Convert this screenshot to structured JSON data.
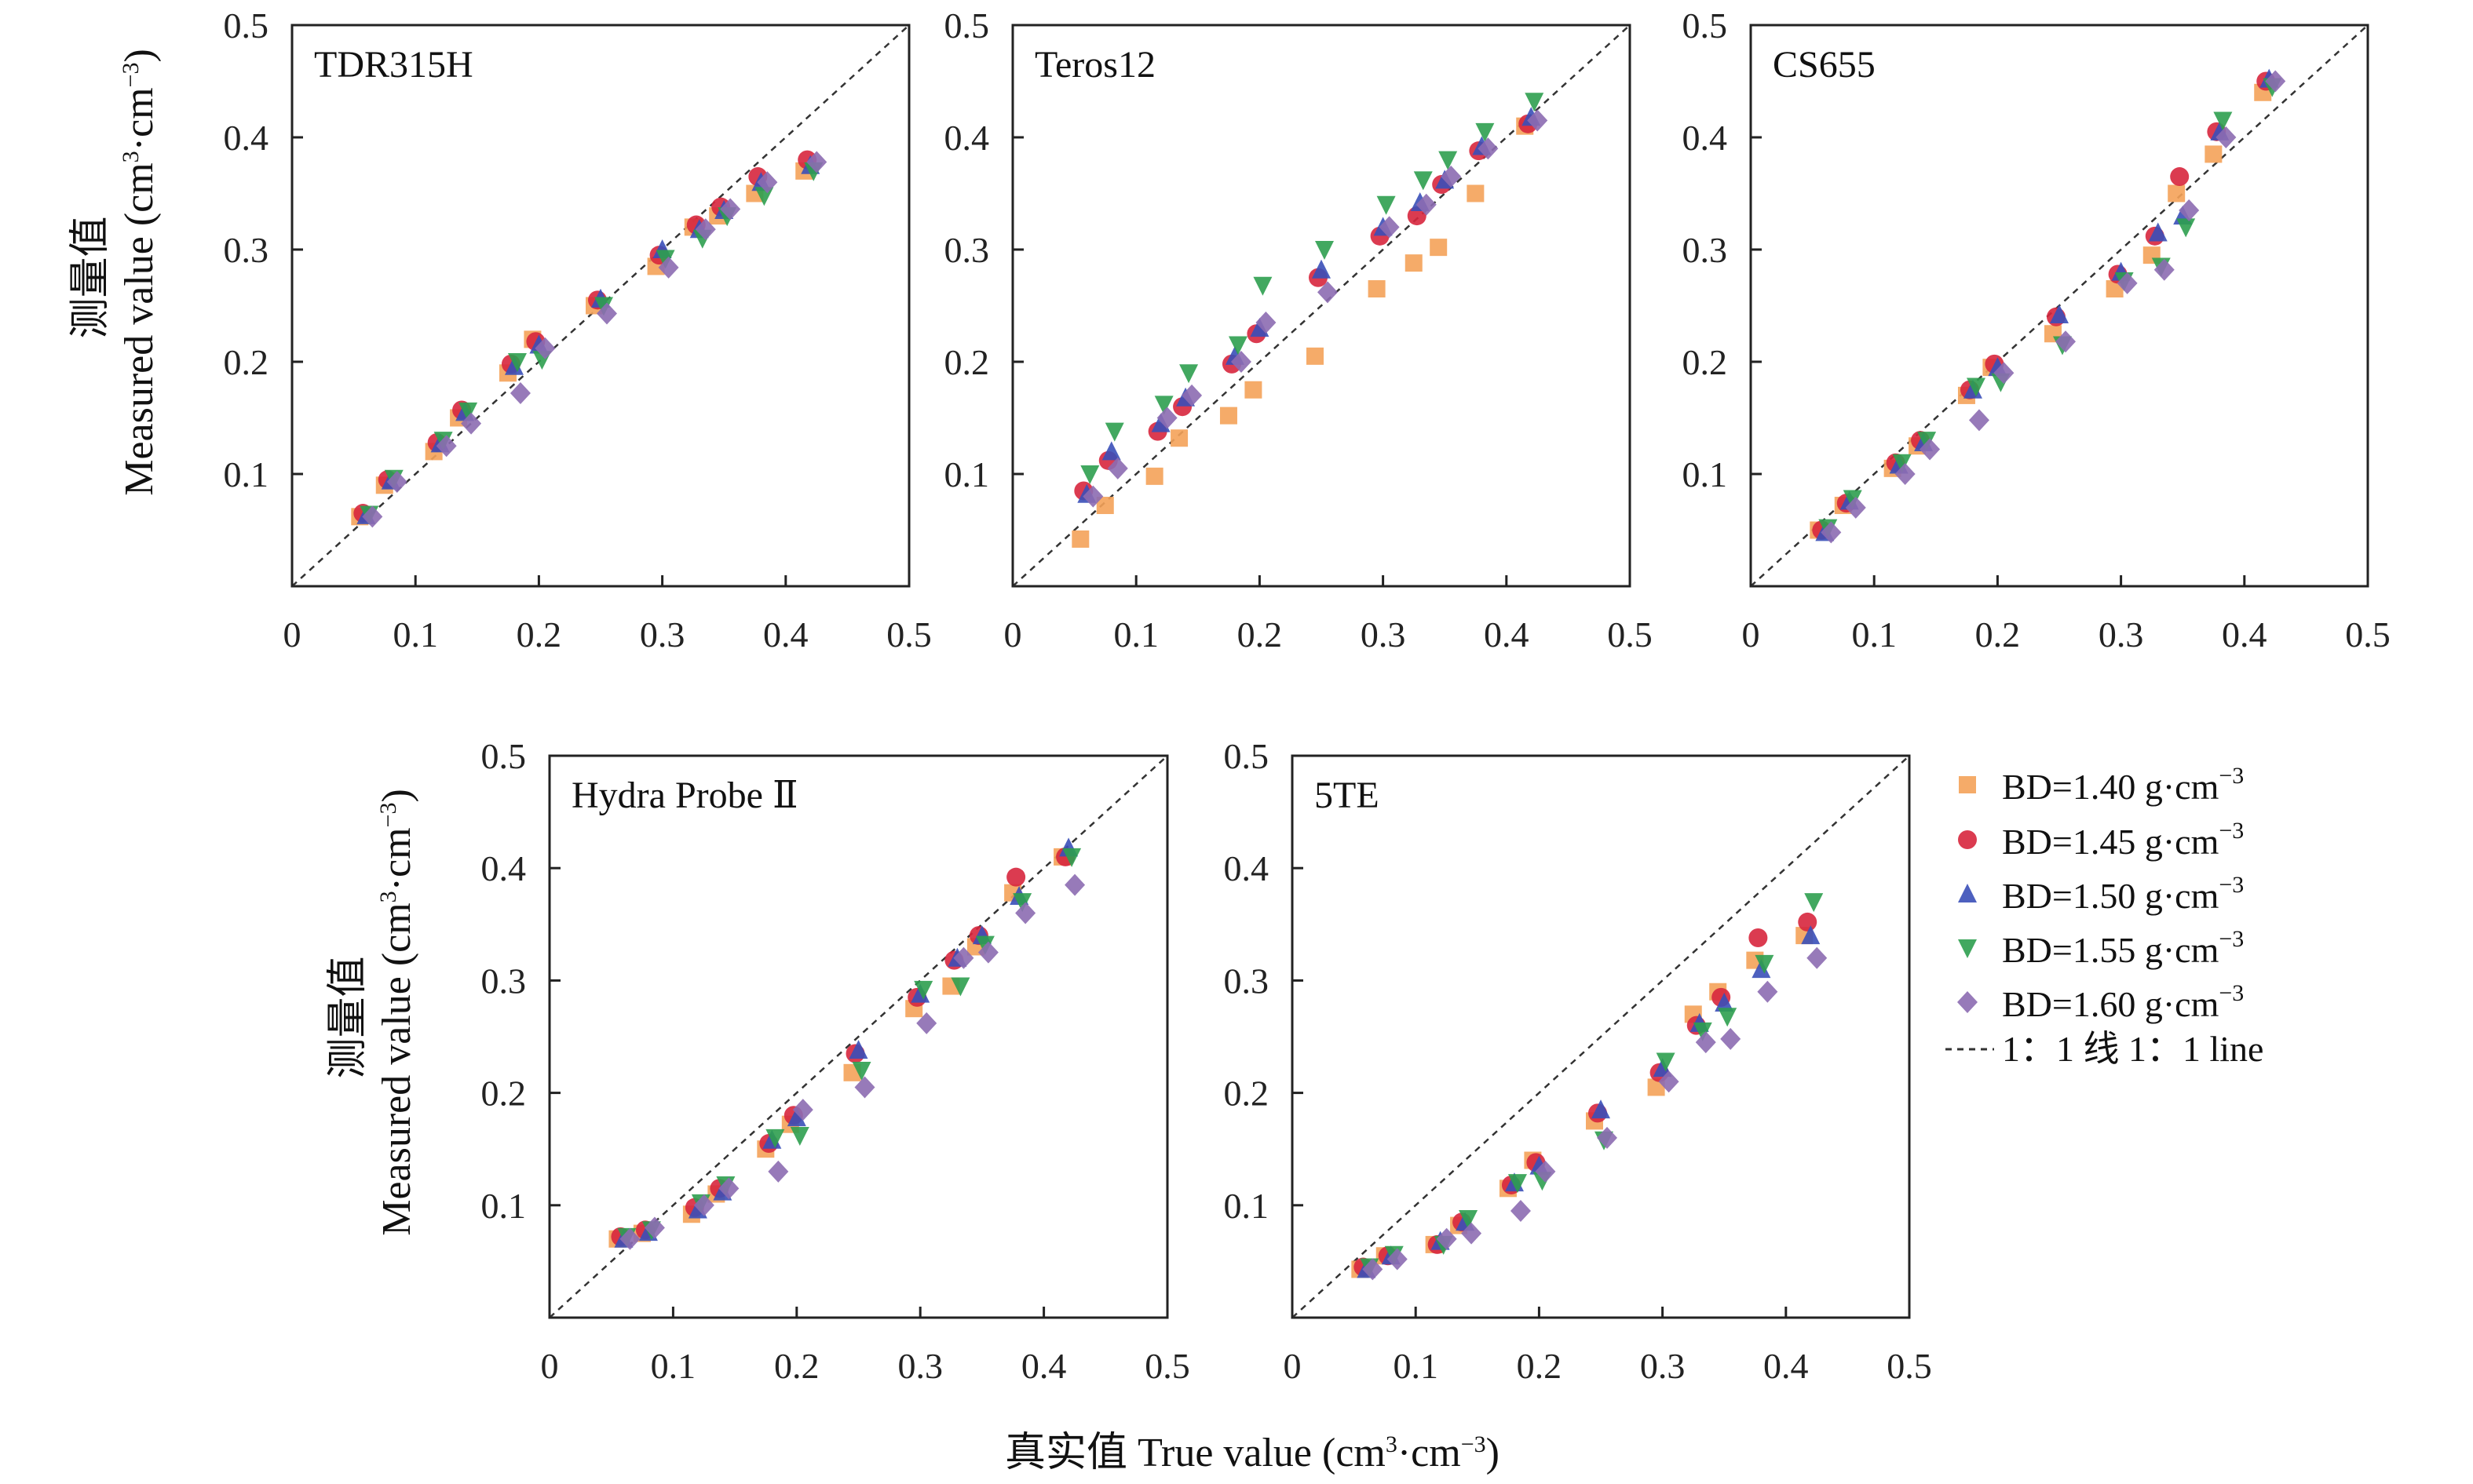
{
  "figure": {
    "y_label_cn": "测量值",
    "y_label_en": "Measured value (cm",
    "y_label_mid": "·cm",
    "y_label_close": ")",
    "x_label_cn": "真实值",
    "x_label_en": "True value (cm",
    "x_label_mid": "·cm",
    "x_label_close": ")",
    "unit_sup_pos": "3",
    "unit_sup_neg": "−3"
  },
  "legend": {
    "items": [
      {
        "text": "BD=1.40 g·cm",
        "sup": "−3"
      },
      {
        "text": "BD=1.45 g·cm",
        "sup": "−3"
      },
      {
        "text": "BD=1.50 g·cm",
        "sup": "−3"
      },
      {
        "text": "BD=1.55 g·cm",
        "sup": "−3"
      },
      {
        "text": "BD=1.60 g·cm",
        "sup": "−3"
      }
    ],
    "line_text": "1：1 线 1：1 line"
  },
  "chart_data": {
    "type": "scatter",
    "xlim": [
      0,
      0.5
    ],
    "ylim": [
      0,
      0.5
    ],
    "x_ticks": [
      "0",
      "0.1",
      "0.2",
      "0.3",
      "0.4",
      "0.5"
    ],
    "y_ticks": [
      "0.1",
      "0.2",
      "0.3",
      "0.4",
      "0.5"
    ],
    "reference_line": "1:1",
    "series_styles": [
      {
        "marker": "square",
        "color": "#F4A259"
      },
      {
        "marker": "circle",
        "color": "#D7263D"
      },
      {
        "marker": "triangle-up",
        "color": "#3A4FB8"
      },
      {
        "marker": "triangle-down",
        "color": "#2E9E4F"
      },
      {
        "marker": "diamond",
        "color": "#8C6BB1"
      }
    ],
    "x": [
      0.06,
      0.08,
      0.12,
      0.14,
      0.18,
      0.2,
      0.25,
      0.3,
      0.33,
      0.35,
      0.38,
      0.42
    ],
    "panels": [
      {
        "title": "TDR315H",
        "series": [
          {
            "name": "BD=1.40 g·cm−3",
            "values": [
              0.062,
              0.09,
              0.12,
              0.15,
              0.19,
              0.22,
              0.25,
              0.285,
              0.32,
              0.33,
              0.35,
              0.37
            ]
          },
          {
            "name": "BD=1.45 g·cm−3",
            "values": [
              0.065,
              0.095,
              0.128,
              0.157,
              0.198,
              0.218,
              0.255,
              0.295,
              0.322,
              0.338,
              0.365,
              0.38
            ]
          },
          {
            "name": "BD=1.50 g·cm−3",
            "values": [
              0.063,
              0.094,
              0.127,
              0.155,
              0.196,
              0.215,
              0.256,
              0.3,
              0.318,
              0.335,
              0.36,
              0.375
            ]
          },
          {
            "name": "BD=1.55 g·cm−3",
            "values": [
              0.064,
              0.096,
              0.13,
              0.156,
              0.2,
              0.202,
              0.25,
              0.292,
              0.31,
              0.33,
              0.348,
              0.37
            ]
          },
          {
            "name": "BD=1.60 g·cm−3",
            "values": [
              0.062,
              0.093,
              0.125,
              0.145,
              0.172,
              0.212,
              0.243,
              0.284,
              0.318,
              0.336,
              0.36,
              0.378
            ]
          }
        ]
      },
      {
        "title": "Teros12",
        "series": [
          {
            "name": "BD=1.40 g·cm−3",
            "values": [
              0.042,
              0.072,
              0.098,
              0.132,
              0.152,
              0.175,
              0.205,
              0.265,
              0.288,
              0.302,
              0.35,
              0.41
            ]
          },
          {
            "name": "BD=1.45 g·cm−3",
            "values": [
              0.085,
              0.112,
              0.138,
              0.16,
              0.198,
              0.225,
              0.275,
              0.312,
              0.33,
              0.358,
              0.388,
              0.412
            ]
          },
          {
            "name": "BD=1.50 g·cm−3",
            "values": [
              0.082,
              0.12,
              0.145,
              0.168,
              0.205,
              0.23,
              0.282,
              0.32,
              0.342,
              0.362,
              0.392,
              0.418
            ]
          },
          {
            "name": "BD=1.55 g·cm−3",
            "values": [
              0.1,
              0.138,
              0.162,
              0.19,
              0.215,
              0.268,
              0.3,
              0.34,
              0.362,
              0.38,
              0.405,
              0.432
            ]
          },
          {
            "name": "BD=1.60 g·cm−3",
            "values": [
              0.08,
              0.105,
              0.15,
              0.17,
              0.2,
              0.235,
              0.262,
              0.32,
              0.34,
              0.365,
              0.39,
              0.415
            ]
          }
        ]
      },
      {
        "title": "CS655",
        "series": [
          {
            "name": "BD=1.40 g·cm−3",
            "values": [
              0.05,
              0.072,
              0.105,
              0.125,
              0.17,
              0.195,
              0.225,
              0.265,
              0.295,
              0.35,
              0.385,
              0.44
            ]
          },
          {
            "name": "BD=1.45 g·cm−3",
            "values": [
              0.05,
              0.074,
              0.11,
              0.13,
              0.175,
              0.198,
              0.24,
              0.278,
              0.312,
              0.365,
              0.405,
              0.45
            ]
          },
          {
            "name": "BD=1.50 g·cm−3",
            "values": [
              0.048,
              0.076,
              0.108,
              0.128,
              0.175,
              0.195,
              0.242,
              0.28,
              0.315,
              0.33,
              0.405,
              0.452
            ]
          },
          {
            "name": "BD=1.55 g·cm−3",
            "values": [
              0.052,
              0.078,
              0.11,
              0.13,
              0.178,
              0.182,
              0.215,
              0.272,
              0.285,
              0.32,
              0.415,
              0.445
            ]
          },
          {
            "name": "BD=1.60 g·cm−3",
            "values": [
              0.048,
              0.07,
              0.1,
              0.122,
              0.148,
              0.19,
              0.218,
              0.27,
              0.282,
              0.335,
              0.4,
              0.45
            ]
          }
        ]
      },
      {
        "title": "Hydra Probe Ⅱ",
        "series": [
          {
            "name": "BD=1.40 g·cm−3",
            "values": [
              0.07,
              0.075,
              0.092,
              0.11,
              0.15,
              0.172,
              0.218,
              0.275,
              0.295,
              0.33,
              0.378,
              0.41
            ]
          },
          {
            "name": "BD=1.45 g·cm−3",
            "values": [
              0.072,
              0.078,
              0.098,
              0.115,
              0.155,
              0.18,
              0.235,
              0.285,
              0.318,
              0.34,
              0.392,
              0.41
            ]
          },
          {
            "name": "BD=1.50 g·cm−3",
            "values": [
              0.07,
              0.076,
              0.096,
              0.112,
              0.158,
              0.178,
              0.238,
              0.288,
              0.32,
              0.34,
              0.375,
              0.418
            ]
          },
          {
            "name": "BD=1.55 g·cm−3",
            "values": [
              0.072,
              0.078,
              0.102,
              0.118,
              0.16,
              0.162,
              0.22,
              0.292,
              0.295,
              0.332,
              0.37,
              0.41
            ]
          },
          {
            "name": "BD=1.60 g·cm−3",
            "values": [
              0.07,
              0.08,
              0.1,
              0.115,
              0.13,
              0.185,
              0.205,
              0.262,
              0.32,
              0.325,
              0.36,
              0.385
            ]
          }
        ]
      },
      {
        "title": "5TE",
        "series": [
          {
            "name": "BD=1.40 g·cm−3",
            "values": [
              0.043,
              0.055,
              0.065,
              0.082,
              0.115,
              0.14,
              0.175,
              0.205,
              0.27,
              0.29,
              0.318,
              0.34
            ]
          },
          {
            "name": "BD=1.45 g·cm−3",
            "values": [
              0.045,
              0.055,
              0.065,
              0.085,
              0.118,
              0.138,
              0.182,
              0.218,
              0.26,
              0.285,
              0.338,
              0.352
            ]
          },
          {
            "name": "BD=1.50 g·cm−3",
            "values": [
              0.043,
              0.055,
              0.068,
              0.085,
              0.12,
              0.135,
              0.185,
              0.222,
              0.262,
              0.28,
              0.31,
              0.34
            ]
          },
          {
            "name": "BD=1.55 g·cm−3",
            "values": [
              0.045,
              0.056,
              0.065,
              0.088,
              0.12,
              0.122,
              0.158,
              0.228,
              0.255,
              0.268,
              0.315,
              0.37
            ]
          },
          {
            "name": "BD=1.60 g·cm−3",
            "values": [
              0.043,
              0.052,
              0.07,
              0.075,
              0.095,
              0.13,
              0.16,
              0.21,
              0.245,
              0.248,
              0.29,
              0.32
            ]
          }
        ]
      }
    ]
  }
}
